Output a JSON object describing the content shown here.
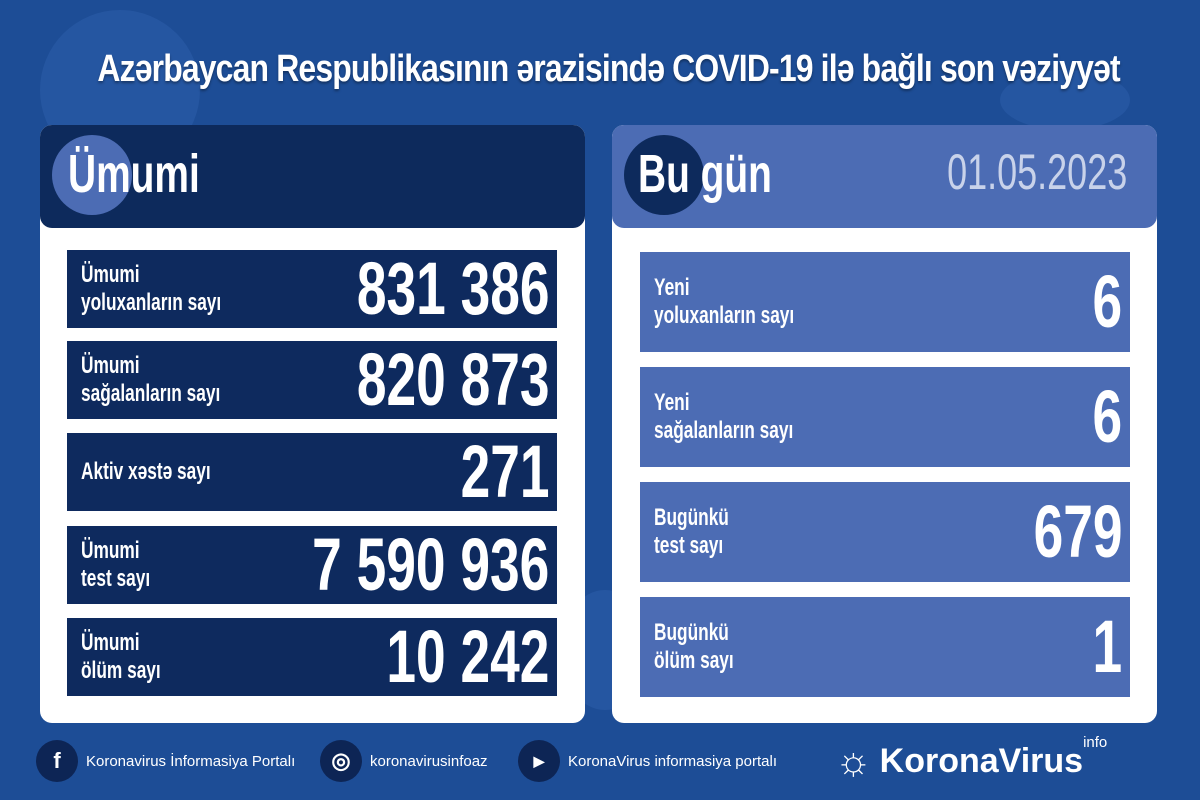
{
  "title": "Azərbaycan Respublikasının ərazisində COVID-19 ilə bağlı son vəziyyət",
  "total": {
    "heading": "Ümumi",
    "rows": [
      {
        "label1": "Ümumi",
        "label2": "yoluxanların sayı",
        "value": "831 386"
      },
      {
        "label1": "Ümumi",
        "label2": "sağalanların sayı",
        "value": "820 873"
      },
      {
        "label1": "Aktiv xəstə sayı",
        "label2": "",
        "value": "271"
      },
      {
        "label1": "Ümumi",
        "label2": "test sayı",
        "value": "7 590 936"
      },
      {
        "label1": "Ümumi",
        "label2": "ölüm sayı",
        "value": "10 242"
      }
    ]
  },
  "today": {
    "heading": "Bu gün",
    "date": "01.05.2023",
    "rows": [
      {
        "label1": "Yeni",
        "label2": "yoluxanların sayı",
        "value": "6"
      },
      {
        "label1": "Yeni",
        "label2": "sağalanların sayı",
        "value": "6"
      },
      {
        "label1": "Bugünkü",
        "label2": "test sayı",
        "value": "679"
      },
      {
        "label1": "Bugünkü",
        "label2": "ölüm sayı",
        "value": "1"
      }
    ]
  },
  "footer": {
    "facebook": "Koronavirus İnformasiya Portalı",
    "instagram": "koronavirusinfoaz",
    "youtube": "KoronaVirus informasiya portalı",
    "logo": "KoronaVirus",
    "logo_sup": "info"
  },
  "colors": {
    "background": "#1d4d96",
    "total_dark": "#0d2a5c",
    "today_light": "#4c6cb4"
  }
}
